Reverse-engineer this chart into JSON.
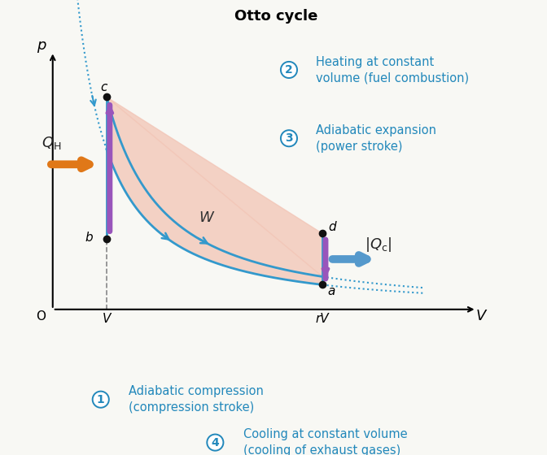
{
  "title": "Otto cycle",
  "title_fontsize": 13,
  "title_fontweight": "bold",
  "bg_color": "#f8f8f4",
  "cycle_color": "#3399cc",
  "fill_color": "#f2c4b5",
  "fill_alpha": 0.75,
  "QH_arrow_color": "#e07818",
  "Qc_arrow_color": "#5599cc",
  "QH_bar_color": "#9955bb",
  "Qc_bar_color": "#9955bb",
  "point_color": "#111111",
  "point_size": 6,
  "annotation_fontsize": 10.5,
  "annotation_color": "#2288bb",
  "gamma": 1.4,
  "V_min": 1.0,
  "V_max": 3.8,
  "p_b": 1.85,
  "p_c": 5.6,
  "p_a": 0.65,
  "p_d": 2.0,
  "xlim": [
    -0.1,
    6.5
  ],
  "ylim": [
    -1.2,
    7.2
  ]
}
